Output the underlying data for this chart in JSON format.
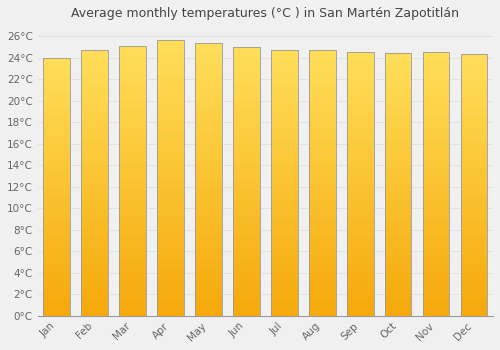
{
  "title": "Average monthly temperatures (°C ) in San Martén Zapotitlán",
  "months": [
    "Jan",
    "Feb",
    "Mar",
    "Apr",
    "May",
    "Jun",
    "Jul",
    "Aug",
    "Sep",
    "Oct",
    "Nov",
    "Dec"
  ],
  "temperatures": [
    24.0,
    24.7,
    25.1,
    25.6,
    25.4,
    25.0,
    24.7,
    24.7,
    24.5,
    24.4,
    24.5,
    24.3
  ],
  "bar_color_top": "#FFD84D",
  "bar_color_bottom": "#F5A800",
  "bar_edge_color": "#999999",
  "background_color": "#F0F0F0",
  "grid_color": "#DDDDDD",
  "ylim": [
    0,
    27
  ],
  "yticks": [
    0,
    2,
    4,
    6,
    8,
    10,
    12,
    14,
    16,
    18,
    20,
    22,
    24,
    26
  ],
  "title_fontsize": 9,
  "tick_fontsize": 7.5,
  "title_color": "#444444",
  "tick_color": "#666666",
  "bar_width": 0.7
}
